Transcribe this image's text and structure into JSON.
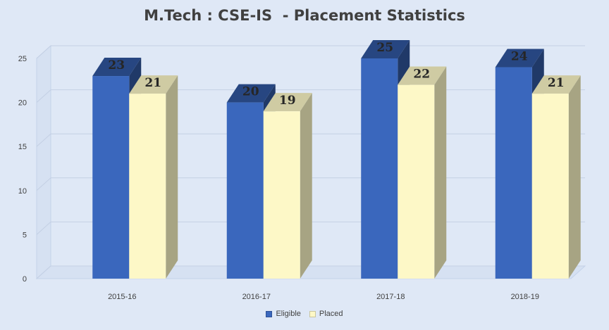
{
  "chart_data": {
    "type": "bar",
    "title": "M.Tech : CSE-IS  - Placement Statistics",
    "categories": [
      "2015-16",
      "2016-17",
      "2017-18",
      "2018-19"
    ],
    "series": [
      {
        "name": "Eligible",
        "values": [
          23,
          20,
          25,
          24
        ],
        "color": "#3a67bd"
      },
      {
        "name": "Placed",
        "values": [
          21,
          19,
          22,
          21
        ],
        "color": "#fdf8c7"
      }
    ],
    "yticks": [
      0,
      5,
      10,
      15,
      20,
      25
    ],
    "ylim": [
      0,
      25
    ],
    "grid": true,
    "legend_position": "bottom",
    "style": "3d-clustered-column"
  }
}
